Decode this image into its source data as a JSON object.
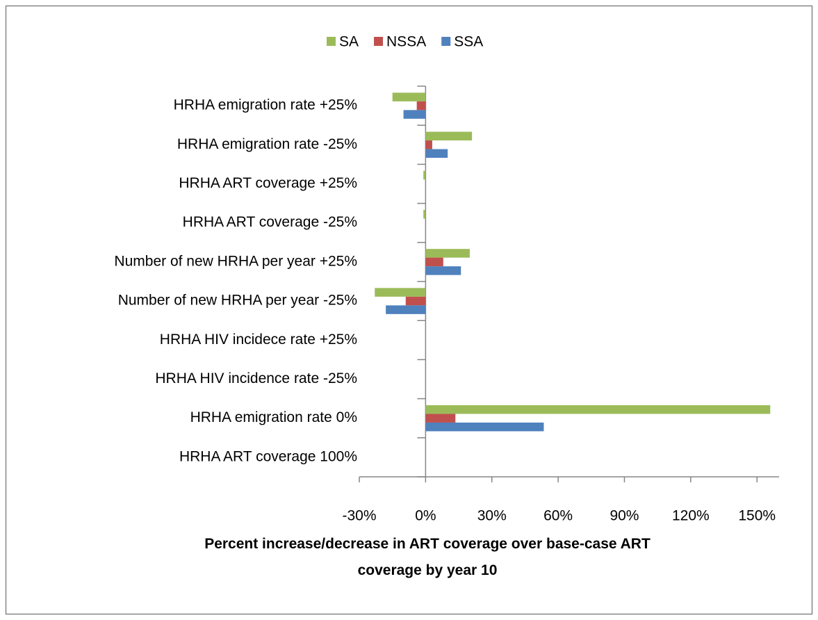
{
  "chart_data": {
    "type": "hbar",
    "x_label": "Percent increase/decrease in ART coverage over base-case ART coverage by year 10",
    "categories": [
      "HRHA emigration rate +25%",
      "HRHA emigration rate -25%",
      "HRHA ART coverage +25%",
      "HRHA ART coverage -25%",
      "Number of new HRHA per year +25%",
      "Number of new HRHA per year -25%",
      "HRHA HIV incidece rate +25%",
      "HRHA HIV incidence rate -25%",
      "HRHA emigration rate 0%",
      "HRHA ART coverage 100%"
    ],
    "series": [
      {
        "name": "SA",
        "color": "#9bbb59",
        "values": [
          -15,
          21,
          -1,
          -1,
          20,
          -23,
          0,
          0,
          156,
          0
        ]
      },
      {
        "name": "NSSA",
        "color": "#c0504d",
        "values": [
          -4,
          3,
          0,
          0,
          8,
          -9,
          0,
          0,
          13.5,
          0
        ]
      },
      {
        "name": "SSA",
        "color": "#4f81bd",
        "values": [
          -10,
          10,
          0,
          0,
          16,
          -18,
          0,
          0,
          53.5,
          0
        ]
      }
    ],
    "xlim": [
      -30,
      160
    ],
    "xticks": [
      {
        "value": -30,
        "label": "-30%"
      },
      {
        "value": 0,
        "label": "0%"
      },
      {
        "value": 30,
        "label": "30%"
      },
      {
        "value": 60,
        "label": "60%"
      },
      {
        "value": 90,
        "label": "90%"
      },
      {
        "value": 120,
        "label": "120%"
      },
      {
        "value": 150,
        "label": "150%"
      }
    ],
    "legend": "top",
    "grid": false
  }
}
